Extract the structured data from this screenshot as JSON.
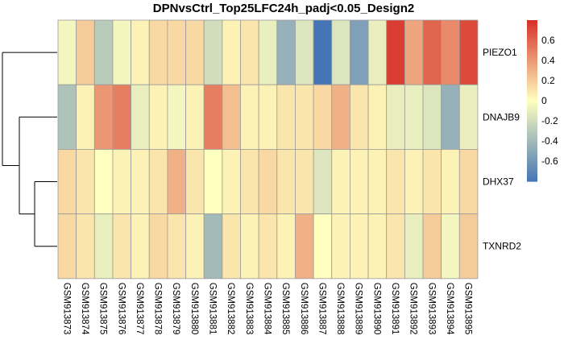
{
  "chart_data": {
    "type": "heatmap",
    "title": "DPNvsCtrl_Top25LFC24h_padj<0.05_Design2",
    "rows": [
      "PIEZO1",
      "DNAJB9",
      "DHX37",
      "TXNRD2"
    ],
    "columns": [
      "GSM913873",
      "GSM913874",
      "GSM913875",
      "GSM913876",
      "GSM913877",
      "GSM913878",
      "GSM913879",
      "GSM913880",
      "GSM913881",
      "GSM913882",
      "GSM913883",
      "GSM913884",
      "GSM913885",
      "GSM913886",
      "GSM913887",
      "GSM913888",
      "GSM913889",
      "GSM913890",
      "GSM913891",
      "GSM913892",
      "GSM913893",
      "GSM913894",
      "GSM913895"
    ],
    "values": [
      [
        -0.05,
        0.2,
        -0.3,
        -0.05,
        0.05,
        0.15,
        0.15,
        0.15,
        -0.2,
        0.05,
        0.1,
        -0.1,
        -0.45,
        -0.15,
        -0.8,
        -0.15,
        -0.55,
        -0.1,
        0.75,
        0.35,
        0.6,
        0.45,
        0.7
      ],
      [
        -0.35,
        0.05,
        0.4,
        0.5,
        -0.1,
        0.05,
        -0.05,
        0.05,
        0.5,
        0.25,
        0.05,
        0.05,
        0.1,
        0.1,
        0.15,
        0.3,
        0.1,
        0.05,
        -0.1,
        -0.1,
        -0.15,
        -0.45,
        -0.1
      ],
      [
        0.15,
        0.1,
        0.0,
        0.05,
        0.05,
        0.1,
        0.3,
        0.1,
        0.0,
        0.05,
        0.1,
        0.15,
        0.1,
        0.1,
        -0.15,
        0.05,
        0.05,
        0.05,
        0.1,
        0.05,
        0.1,
        0.05,
        0.15
      ],
      [
        0.15,
        0.1,
        -0.1,
        0.1,
        0.05,
        0.15,
        0.1,
        0.05,
        -0.4,
        0.1,
        0.05,
        0.1,
        0.05,
        0.3,
        0.0,
        0.05,
        0.05,
        0.05,
        0.1,
        -0.1,
        0.2,
        -0.05,
        0.2
      ]
    ],
    "color_scale": {
      "min": -0.8,
      "max": 0.8,
      "low_color": "#4575B4",
      "mid_color": "#FFFFBF",
      "high_color": "#D73027",
      "ticks": [
        "-0.6",
        "-0.4",
        "-0.2",
        "0",
        "0.2",
        "0.4",
        "0.6"
      ]
    },
    "row_dendrogram": true,
    "legend_placement": "right"
  }
}
